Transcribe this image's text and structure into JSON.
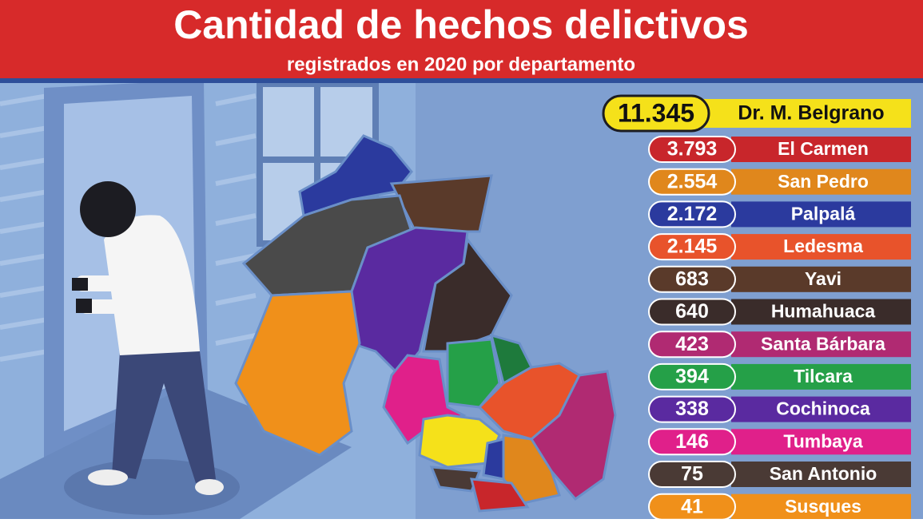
{
  "header": {
    "title": "Cantidad de hechos delictivos",
    "subtitle": "registrados en 2020 por departamento"
  },
  "rows": [
    {
      "value": "11.345",
      "name": "Dr. M. Belgrano",
      "color": "#f5e11a"
    },
    {
      "value": "3.793",
      "name": "El Carmen",
      "color": "#c8262b"
    },
    {
      "value": "2.554",
      "name": "San Pedro",
      "color": "#e0871c"
    },
    {
      "value": "2.172",
      "name": "Palpalá",
      "color": "#2b3a9e"
    },
    {
      "value": "2.145",
      "name": "Ledesma",
      "color": "#e8532b"
    },
    {
      "value": "683",
      "name": "Yavi",
      "color": "#5a3a2a"
    },
    {
      "value": "640",
      "name": "Humahuaca",
      "color": "#3a2c2a"
    },
    {
      "value": "423",
      "name": "Santa Bárbara",
      "color": "#b02a72"
    },
    {
      "value": "394",
      "name": "Tilcara",
      "color": "#25a048"
    },
    {
      "value": "338",
      "name": "Cochinoca",
      "color": "#5a2aa0"
    },
    {
      "value": "146",
      "name": "Tumbaya",
      "color": "#e0208a"
    },
    {
      "value": "75",
      "name": "San Antonio",
      "color": "#4a3a35"
    },
    {
      "value": "41",
      "name": "Susques",
      "color": "#f0901a"
    }
  ]
}
